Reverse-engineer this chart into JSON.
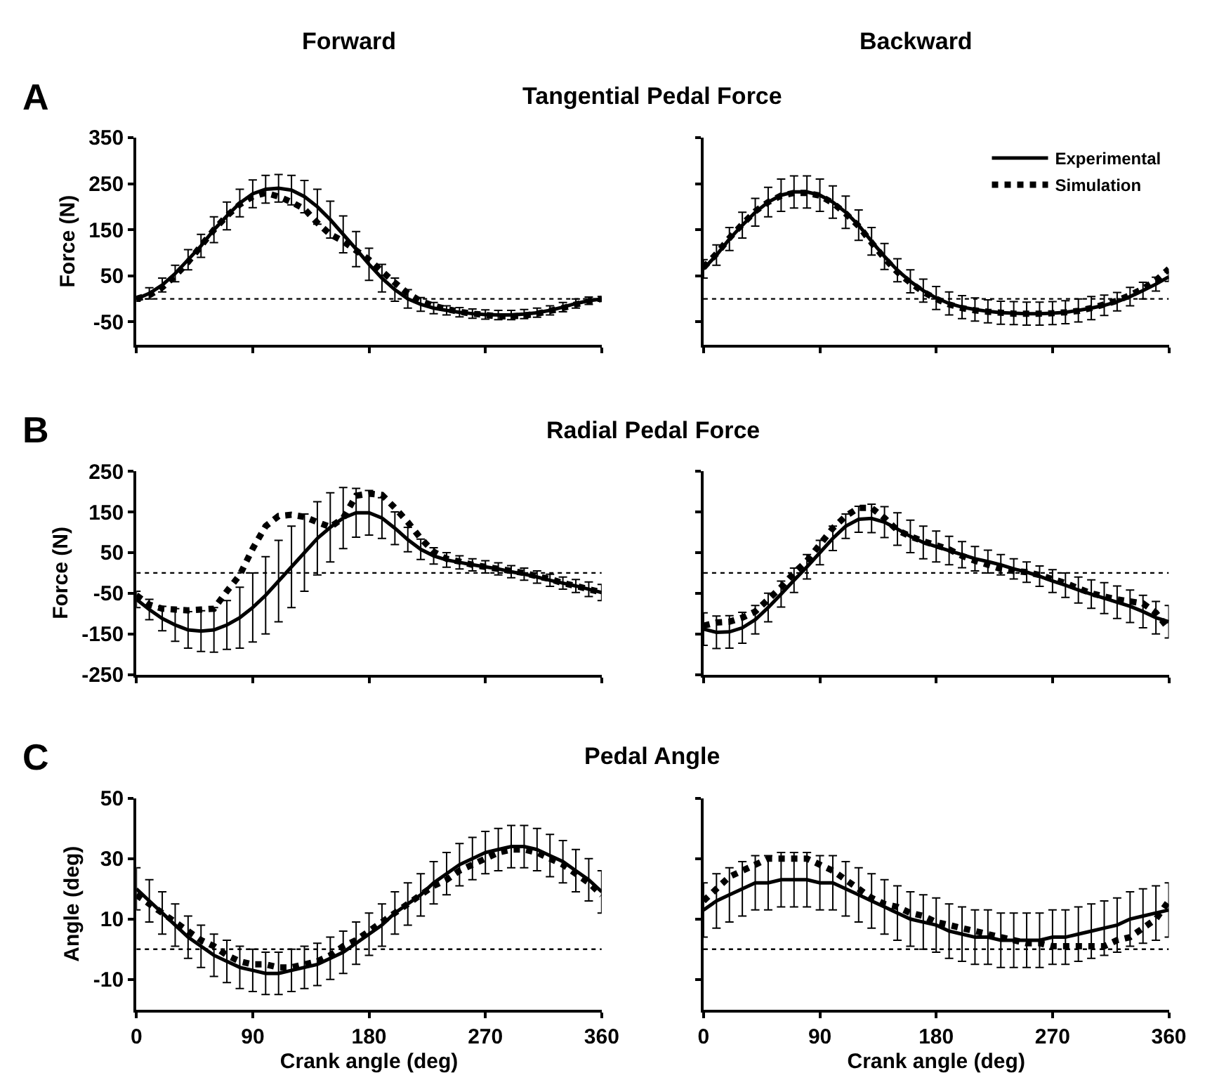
{
  "chart_data": [
    {
      "type": "line",
      "title": "Tangential Pedal Force",
      "ylabel": "Force (N)",
      "annotations": [
        "A",
        "Forward"
      ],
      "x": [
        0,
        10,
        20,
        30,
        40,
        50,
        60,
        70,
        80,
        90,
        100,
        110,
        120,
        130,
        140,
        150,
        160,
        170,
        180,
        190,
        200,
        210,
        220,
        230,
        240,
        250,
        260,
        270,
        280,
        290,
        300,
        310,
        320,
        330,
        340,
        350,
        360
      ],
      "xlim": [
        0,
        360
      ],
      "xticks": [
        0,
        90,
        180,
        270,
        360
      ],
      "ylim": [
        -100,
        350
      ],
      "yticks": [
        -50,
        50,
        150,
        250,
        350
      ],
      "grid": false,
      "tick_labels": "y",
      "series": [
        {
          "color": "#000000",
          "line_style": "solid",
          "values": [
            0,
            12,
            30,
            55,
            85,
            115,
            150,
            180,
            208,
            228,
            238,
            240,
            236,
            222,
            200,
            172,
            140,
            108,
            75,
            45,
            20,
            0,
            -12,
            -20,
            -25,
            -29,
            -32,
            -34,
            -35,
            -35,
            -33,
            -30,
            -25,
            -18,
            -10,
            -4,
            0
          ],
          "errors": [
            5,
            12,
            15,
            18,
            22,
            25,
            28,
            30,
            30,
            30,
            30,
            30,
            32,
            35,
            38,
            40,
            40,
            38,
            35,
            30,
            25,
            20,
            15,
            12,
            10,
            10,
            10,
            10,
            10,
            10,
            10,
            10,
            10,
            10,
            10,
            8,
            5
          ]
        },
        {
          "color": "#000000",
          "line_style": "dotted",
          "values": [
            0,
            8,
            25,
            50,
            80,
            115,
            150,
            180,
            205,
            222,
            230,
            222,
            210,
            195,
            165,
            140,
            125,
            105,
            85,
            60,
            35,
            12,
            -5,
            -15,
            -22,
            -28,
            -32,
            -35,
            -38,
            -38,
            -36,
            -32,
            -26,
            -20,
            -12,
            -5,
            0
          ]
        }
      ],
      "ref_lines": [
        {
          "axis": "y",
          "value": 0,
          "color": "#000000",
          "line_style": "dotted"
        }
      ]
    },
    {
      "type": "line",
      "annotations": [
        "Backward"
      ],
      "x": [
        0,
        10,
        20,
        30,
        40,
        50,
        60,
        70,
        80,
        90,
        100,
        110,
        120,
        130,
        140,
        150,
        160,
        170,
        180,
        190,
        200,
        210,
        220,
        230,
        240,
        250,
        260,
        270,
        280,
        290,
        300,
        310,
        320,
        330,
        340,
        350,
        360
      ],
      "xlim": [
        0,
        360
      ],
      "xticks": [
        0,
        90,
        180,
        270,
        360
      ],
      "ylim": [
        -100,
        350
      ],
      "yticks": [
        -50,
        50,
        150,
        250,
        350
      ],
      "grid": false,
      "tick_labels": false,
      "legend": "top right",
      "series": [
        {
          "name": "Experimental",
          "color": "#000000",
          "line_style": "solid",
          "values": [
            65,
            95,
            130,
            160,
            188,
            210,
            225,
            232,
            232,
            225,
            210,
            188,
            160,
            125,
            92,
            62,
            38,
            18,
            2,
            -10,
            -18,
            -23,
            -27,
            -30,
            -31,
            -32,
            -32,
            -31,
            -29,
            -25,
            -20,
            -14,
            -6,
            5,
            18,
            32,
            48
          ],
          "errors": [
            20,
            22,
            25,
            28,
            30,
            32,
            35,
            35,
            35,
            35,
            35,
            35,
            33,
            30,
            28,
            25,
            25,
            25,
            25,
            25,
            25,
            25,
            25,
            25,
            25,
            25,
            25,
            25,
            25,
            25,
            25,
            22,
            20,
            20,
            18,
            15,
            10
          ]
        },
        {
          "name": "Simulation",
          "color": "#000000",
          "line_style": "dotted",
          "values": [
            68,
            98,
            132,
            162,
            190,
            210,
            224,
            230,
            230,
            224,
            208,
            185,
            158,
            122,
            88,
            58,
            35,
            15,
            0,
            -12,
            -20,
            -25,
            -28,
            -30,
            -32,
            -32,
            -32,
            -31,
            -29,
            -26,
            -20,
            -12,
            -4,
            8,
            22,
            40,
            65
          ]
        }
      ],
      "ref_lines": [
        {
          "axis": "y",
          "value": 0,
          "color": "#000000",
          "line_style": "dotted"
        }
      ]
    },
    {
      "type": "line",
      "title": "Radial Pedal Force",
      "ylabel": "Force (N)",
      "annotations": [
        "B"
      ],
      "x": [
        0,
        10,
        20,
        30,
        40,
        50,
        60,
        70,
        80,
        90,
        100,
        110,
        120,
        130,
        140,
        150,
        160,
        170,
        180,
        190,
        200,
        210,
        220,
        230,
        240,
        250,
        260,
        270,
        280,
        290,
        300,
        310,
        320,
        330,
        340,
        350,
        360
      ],
      "xlim": [
        0,
        360
      ],
      "xticks": [
        0,
        90,
        180,
        270,
        360
      ],
      "ylim": [
        -250,
        250
      ],
      "yticks": [
        -250,
        -150,
        -50,
        50,
        150,
        250
      ],
      "grid": false,
      "tick_labels": "y",
      "series": [
        {
          "color": "#000000",
          "line_style": "solid",
          "values": [
            -65,
            -90,
            -112,
            -128,
            -140,
            -143,
            -140,
            -128,
            -110,
            -85,
            -55,
            -20,
            15,
            50,
            85,
            112,
            135,
            148,
            148,
            135,
            110,
            82,
            58,
            42,
            32,
            26,
            20,
            15,
            10,
            3,
            -3,
            -10,
            -18,
            -25,
            -32,
            -40,
            -48
          ],
          "errors": [
            20,
            25,
            30,
            40,
            45,
            50,
            55,
            60,
            75,
            85,
            95,
            100,
            100,
            95,
            90,
            85,
            75,
            60,
            55,
            50,
            40,
            30,
            25,
            20,
            18,
            16,
            15,
            15,
            15,
            15,
            15,
            15,
            15,
            15,
            16,
            18,
            20
          ]
        },
        {
          "color": "#000000",
          "line_style": "dotted",
          "values": [
            -55,
            -78,
            -88,
            -90,
            -92,
            -90,
            -88,
            -45,
            -5,
            60,
            115,
            140,
            143,
            138,
            125,
            113,
            135,
            190,
            195,
            192,
            160,
            125,
            85,
            52,
            35,
            28,
            20,
            15,
            10,
            5,
            0,
            -8,
            -15,
            -25,
            -32,
            -40,
            -48
          ]
        }
      ],
      "ref_lines": [
        {
          "axis": "y",
          "value": 0,
          "color": "#000000",
          "line_style": "dotted"
        }
      ]
    },
    {
      "type": "line",
      "x": [
        0,
        10,
        20,
        30,
        40,
        50,
        60,
        70,
        80,
        90,
        100,
        110,
        120,
        130,
        140,
        150,
        160,
        170,
        180,
        190,
        200,
        210,
        220,
        230,
        240,
        250,
        260,
        270,
        280,
        290,
        300,
        310,
        320,
        330,
        340,
        350,
        360
      ],
      "xlim": [
        0,
        360
      ],
      "xticks": [
        0,
        90,
        180,
        270,
        360
      ],
      "ylim": [
        -250,
        250
      ],
      "yticks": [
        -250,
        -150,
        -50,
        50,
        150,
        250
      ],
      "grid": false,
      "tick_labels": false,
      "series": [
        {
          "color": "#000000",
          "line_style": "solid",
          "values": [
            -138,
            -146,
            -145,
            -135,
            -115,
            -85,
            -52,
            -18,
            15,
            50,
            85,
            115,
            132,
            134,
            125,
            108,
            90,
            75,
            65,
            55,
            45,
            35,
            28,
            20,
            10,
            2,
            -8,
            -20,
            -30,
            -42,
            -52,
            -62,
            -72,
            -82,
            -95,
            -110,
            -120
          ],
          "errors": [
            40,
            40,
            40,
            38,
            35,
            35,
            32,
            30,
            30,
            30,
            30,
            30,
            32,
            35,
            38,
            40,
            40,
            40,
            38,
            35,
            32,
            30,
            28,
            25,
            25,
            25,
            25,
            28,
            30,
            32,
            35,
            38,
            40,
            40,
            40,
            40,
            40
          ]
        },
        {
          "color": "#000000",
          "line_style": "dotted",
          "values": [
            -130,
            -122,
            -120,
            -110,
            -95,
            -65,
            -35,
            0,
            30,
            70,
            110,
            140,
            160,
            160,
            135,
            105,
            90,
            78,
            68,
            58,
            42,
            30,
            20,
            10,
            5,
            2,
            -5,
            -15,
            -25,
            -38,
            -50,
            -58,
            -65,
            -70,
            -75,
            -98,
            -138
          ]
        }
      ],
      "ref_lines": [
        {
          "axis": "y",
          "value": 0,
          "color": "#000000",
          "line_style": "dotted"
        }
      ]
    },
    {
      "type": "line",
      "title": "Pedal Angle",
      "ylabel": "Angle (deg)",
      "xlabel": "Crank angle (deg)",
      "annotations": [
        "C"
      ],
      "x": [
        0,
        10,
        20,
        30,
        40,
        50,
        60,
        70,
        80,
        90,
        100,
        110,
        120,
        130,
        140,
        150,
        160,
        170,
        180,
        190,
        200,
        210,
        220,
        230,
        240,
        250,
        260,
        270,
        280,
        290,
        300,
        310,
        320,
        330,
        340,
        350,
        360
      ],
      "xlim": [
        0,
        360
      ],
      "xticks": [
        0,
        90,
        180,
        270,
        360
      ],
      "ylim": [
        -20,
        50
      ],
      "yticks": [
        -10,
        10,
        30,
        50
      ],
      "grid": false,
      "series": [
        {
          "color": "#000000",
          "line_style": "solid",
          "values": [
            20,
            16,
            12,
            8,
            4,
            1,
            -2,
            -4,
            -6,
            -7,
            -8,
            -8,
            -7,
            -6,
            -5,
            -3,
            -1,
            2,
            5,
            8,
            12,
            15,
            18,
            22,
            25,
            28,
            30,
            32,
            33,
            34,
            34,
            33,
            31,
            29,
            26,
            23,
            19
          ],
          "errors": [
            7,
            7,
            7,
            7,
            7,
            7,
            7,
            7,
            7,
            7,
            7,
            7,
            7,
            7,
            7,
            7,
            7,
            7,
            7,
            7,
            7,
            7,
            7,
            7,
            7,
            7,
            7,
            7,
            7,
            7,
            7,
            7,
            7,
            7,
            7,
            7,
            7
          ]
        },
        {
          "color": "#000000",
          "line_style": "dotted",
          "values": [
            18,
            15,
            12,
            9,
            6,
            3,
            1,
            -2,
            -4,
            -5,
            -5,
            -6,
            -6,
            -5,
            -4,
            -2,
            1,
            3,
            6,
            9,
            12,
            15,
            18,
            21,
            23,
            26,
            28,
            30,
            32,
            33,
            33,
            32,
            30,
            28,
            25,
            22,
            18
          ]
        }
      ],
      "ref_lines": [
        {
          "axis": "y",
          "value": 0,
          "color": "#000000",
          "line_style": "dotted"
        }
      ]
    },
    {
      "type": "line",
      "xlabel": "Crank angle (deg)",
      "x": [
        0,
        10,
        20,
        30,
        40,
        50,
        60,
        70,
        80,
        90,
        100,
        110,
        120,
        130,
        140,
        150,
        160,
        170,
        180,
        190,
        200,
        210,
        220,
        230,
        240,
        250,
        260,
        270,
        280,
        290,
        300,
        310,
        320,
        330,
        340,
        350,
        360
      ],
      "xlim": [
        0,
        360
      ],
      "xticks": [
        0,
        90,
        180,
        270,
        360
      ],
      "ylim": [
        -20,
        50
      ],
      "yticks": [
        -10,
        10,
        30,
        50
      ],
      "grid": false,
      "tick_labels": "x",
      "series": [
        {
          "color": "#000000",
          "line_style": "solid",
          "values": [
            13,
            16,
            18,
            20,
            22,
            22,
            23,
            23,
            23,
            22,
            22,
            20,
            18,
            16,
            14,
            12,
            10,
            9,
            8,
            6,
            5,
            4,
            4,
            3,
            3,
            3,
            3,
            4,
            4,
            5,
            6,
            7,
            8,
            10,
            11,
            12,
            13
          ],
          "errors": [
            9,
            9,
            9,
            9,
            9,
            9,
            9,
            9,
            9,
            9,
            9,
            9,
            9,
            9,
            9,
            9,
            9,
            9,
            9,
            9,
            9,
            9,
            9,
            9,
            9,
            9,
            9,
            9,
            9,
            9,
            9,
            9,
            9,
            9,
            9,
            9,
            9
          ]
        },
        {
          "color": "#000000",
          "line_style": "dotted",
          "values": [
            16,
            20,
            24,
            26,
            28,
            30,
            30,
            30,
            30,
            28,
            26,
            23,
            20,
            17,
            15,
            14,
            12,
            11,
            9,
            8,
            7,
            6,
            5,
            4,
            3,
            2,
            2,
            1,
            1,
            1,
            1,
            1,
            3,
            4,
            7,
            10,
            16
          ]
        }
      ],
      "ref_lines": [
        {
          "axis": "y",
          "value": 0,
          "color": "#000000",
          "line_style": "dotted"
        }
      ]
    }
  ]
}
